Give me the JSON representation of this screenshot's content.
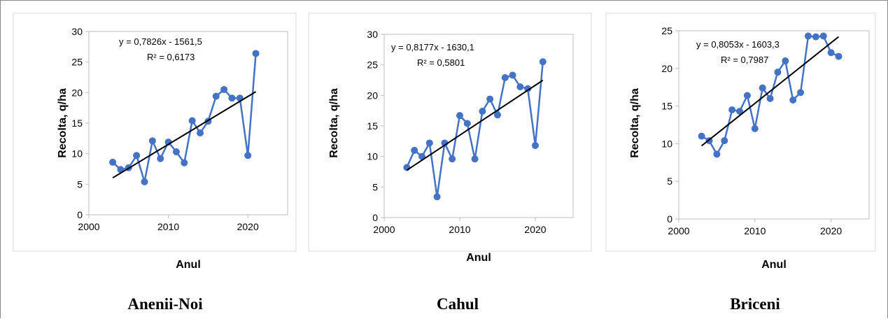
{
  "chart_data": [
    {
      "type": "line",
      "title": "",
      "caption": "Anenii-Noi",
      "xlabel": "Anul",
      "ylabel": "Recolta, q/ha",
      "xlim": [
        2000,
        2025
      ],
      "ylim": [
        0,
        30
      ],
      "xticks": [
        "2000",
        "2010",
        "2020"
      ],
      "yticks": [
        "0",
        "5",
        "10",
        "15",
        "20",
        "25",
        "30"
      ],
      "grid": false,
      "colors": {
        "series": "#4472C4",
        "trend": "#000000"
      },
      "equation": "y = 0,7826x - 1561,5",
      "r2": "R² = 0,6173",
      "trend": {
        "slope": 0.7826,
        "intercept": -1561.5
      },
      "series": [
        {
          "x": [
            2003,
            2004,
            2005,
            2006,
            2007,
            2008,
            2009,
            2010,
            2011,
            2012,
            2013,
            2014,
            2015,
            2016,
            2017,
            2018,
            2019,
            2020,
            2021
          ],
          "values": [
            8.6,
            7.4,
            7.7,
            9.7,
            5.4,
            12.1,
            9.2,
            11.9,
            10.3,
            8.5,
            15.4,
            13.4,
            15.3,
            19.4,
            20.5,
            19.1,
            19.1,
            9.7,
            26.4
          ]
        }
      ]
    },
    {
      "type": "line",
      "title": "",
      "caption": "Cahul",
      "xlabel": "Anul",
      "ylabel": "Recolta, q/ha",
      "xlim": [
        2000,
        2025
      ],
      "ylim": [
        0,
        30
      ],
      "xticks": [
        "2000",
        "2010",
        "2020"
      ],
      "yticks": [
        "0",
        "5",
        "10",
        "15",
        "20",
        "25",
        "30"
      ],
      "grid": false,
      "colors": {
        "series": "#4472C4",
        "trend": "#000000"
      },
      "equation": "y = 0,8177x - 1630,1",
      "r2": "R² = 0,5801",
      "trend": {
        "slope": 0.8177,
        "intercept": -1630.1
      },
      "series": [
        {
          "x": [
            2003,
            2004,
            2005,
            2006,
            2007,
            2008,
            2009,
            2010,
            2011,
            2012,
            2013,
            2014,
            2015,
            2016,
            2017,
            2018,
            2019,
            2020,
            2021
          ],
          "values": [
            8.2,
            11.0,
            10.0,
            12.2,
            3.4,
            12.2,
            9.6,
            16.7,
            15.4,
            9.6,
            17.4,
            19.4,
            16.8,
            22.9,
            23.3,
            21.4,
            21.1,
            11.8,
            25.5
          ]
        }
      ]
    },
    {
      "type": "line",
      "title": "",
      "caption": "Briceni",
      "xlabel": "Anul",
      "ylabel": "Recolta, q/ha",
      "xlim": [
        2000,
        2025
      ],
      "ylim": [
        0,
        25
      ],
      "xticks": [
        "2000",
        "2010",
        "2020"
      ],
      "yticks": [
        "0",
        "5",
        "10",
        "15",
        "20",
        "25"
      ],
      "grid": false,
      "colors": {
        "series": "#4472C4",
        "trend": "#000000"
      },
      "equation": "y = 0,8053x - 1603,3",
      "r2": "R² = 0,7987",
      "trend": {
        "slope": 0.8053,
        "intercept": -1603.3
      },
      "series": [
        {
          "x": [
            2003,
            2004,
            2005,
            2006,
            2007,
            2008,
            2009,
            2010,
            2011,
            2012,
            2013,
            2014,
            2015,
            2016,
            2017,
            2018,
            2019,
            2020,
            2021
          ],
          "values": [
            11.0,
            10.4,
            8.6,
            10.4,
            14.5,
            14.3,
            16.4,
            12.0,
            17.4,
            16.0,
            19.5,
            21.0,
            15.8,
            16.8,
            24.3,
            24.2,
            24.3,
            22.1,
            21.6
          ]
        }
      ]
    }
  ]
}
